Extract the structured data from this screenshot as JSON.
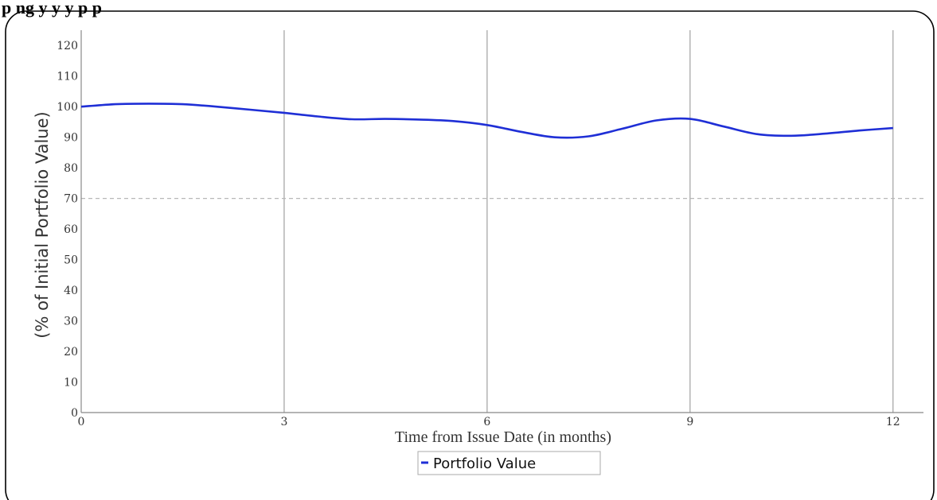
{
  "page": {
    "header_text": "p                              ng y                                  y                                          y                    p                  p"
  },
  "chart_data": {
    "type": "line",
    "title": "",
    "xlabel": "Time from Issue Date (in months)",
    "ylabel": "(% of Initial Portfolio Value)",
    "xlim": [
      0,
      12.45
    ],
    "ylim": [
      0,
      125
    ],
    "x_ticks": [
      "0",
      "3",
      "6",
      "9",
      "12"
    ],
    "x_tick_values": [
      0,
      3,
      6,
      9,
      12
    ],
    "y_ticks": [
      "0",
      "10",
      "20",
      "30",
      "40",
      "50",
      "60",
      "70",
      "80",
      "90",
      "100",
      "110",
      "120"
    ],
    "y_tick_values": [
      0,
      10,
      20,
      30,
      40,
      50,
      60,
      70,
      80,
      90,
      100,
      110,
      120
    ],
    "grid": "vertical at x ticks",
    "reference_line": {
      "y": 70,
      "style": "dashed"
    },
    "legend": {
      "placement": "bottom-center"
    },
    "series": [
      {
        "name": "Portfolio Value",
        "color": "#1f2fd6",
        "x": [
          0,
          0.5,
          1.0,
          1.5,
          2.0,
          2.5,
          3.0,
          3.5,
          4.0,
          4.5,
          5.0,
          5.5,
          6.0,
          6.5,
          7.0,
          7.5,
          8.0,
          8.5,
          9.0,
          9.5,
          10.0,
          10.5,
          11.0,
          11.5,
          12.0
        ],
        "values": [
          100,
          100.8,
          101,
          100.8,
          100,
          99,
          98,
          96.8,
          95.9,
          96,
          95.8,
          95.3,
          94,
          91.8,
          90,
          90.3,
          92.8,
          95.5,
          96,
          93.5,
          91,
          90.5,
          91.2,
          92.2,
          93
        ]
      }
    ]
  }
}
